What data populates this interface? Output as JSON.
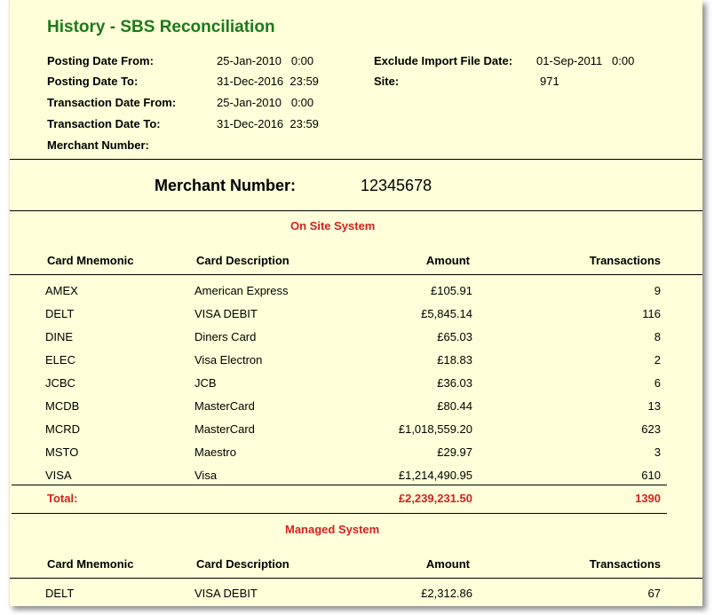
{
  "report": {
    "title": "History - SBS Reconciliation",
    "params": {
      "posting_from_label": "Posting Date From:",
      "posting_from_value": "25-Jan-2010   0:00",
      "posting_to_label": "Posting Date To:",
      "posting_to_value": "31-Dec-2016  23:59",
      "txn_from_label": "Transaction Date From:",
      "txn_from_value": "25-Jan-2010   0:00",
      "txn_to_label": "Transaction Date To:",
      "txn_to_value": "31-Dec-2016  23:59",
      "merchant_label": "Merchant Number:",
      "exclude_label": "Exclude Import File Date:",
      "exclude_value": "01-Sep-2011   0:00",
      "site_label": "Site:",
      "site_value": "971"
    },
    "merchant": {
      "label": "Merchant Number:",
      "value": "12345678"
    }
  },
  "columns": {
    "mnemonic": "Card Mnemonic",
    "description": "Card Description",
    "amount": "Amount",
    "transactions": "Transactions"
  },
  "on_site": {
    "title": "On Site System",
    "rows": [
      {
        "mnemonic": "AMEX",
        "description": "American Express",
        "amount": "£105.91",
        "transactions": "9"
      },
      {
        "mnemonic": "DELT",
        "description": "VISA DEBIT",
        "amount": "£5,845.14",
        "transactions": "116"
      },
      {
        "mnemonic": "DINE",
        "description": "Diners Card",
        "amount": "£65.03",
        "transactions": "8"
      },
      {
        "mnemonic": "ELEC",
        "description": "Visa Electron",
        "amount": "£18.83",
        "transactions": "2"
      },
      {
        "mnemonic": "JCBC",
        "description": "JCB",
        "amount": "£36.03",
        "transactions": "6"
      },
      {
        "mnemonic": "MCDB",
        "description": "MasterCard",
        "amount": "£80.44",
        "transactions": "13"
      },
      {
        "mnemonic": "MCRD",
        "description": "MasterCard",
        "amount": "£1,018,559.20",
        "transactions": "623"
      },
      {
        "mnemonic": "MSTO",
        "description": "Maestro",
        "amount": "£29.97",
        "transactions": "3"
      },
      {
        "mnemonic": "VISA",
        "description": "Visa",
        "amount": "£1,214,490.95",
        "transactions": "610"
      }
    ],
    "total_label": "Total:",
    "total_amount": "£2,239,231.50",
    "total_transactions": "1390"
  },
  "managed": {
    "title": "Managed System",
    "rows": [
      {
        "mnemonic": "DELT",
        "description": "VISA DEBIT",
        "amount": "£2,312.86",
        "transactions": "67"
      }
    ]
  }
}
